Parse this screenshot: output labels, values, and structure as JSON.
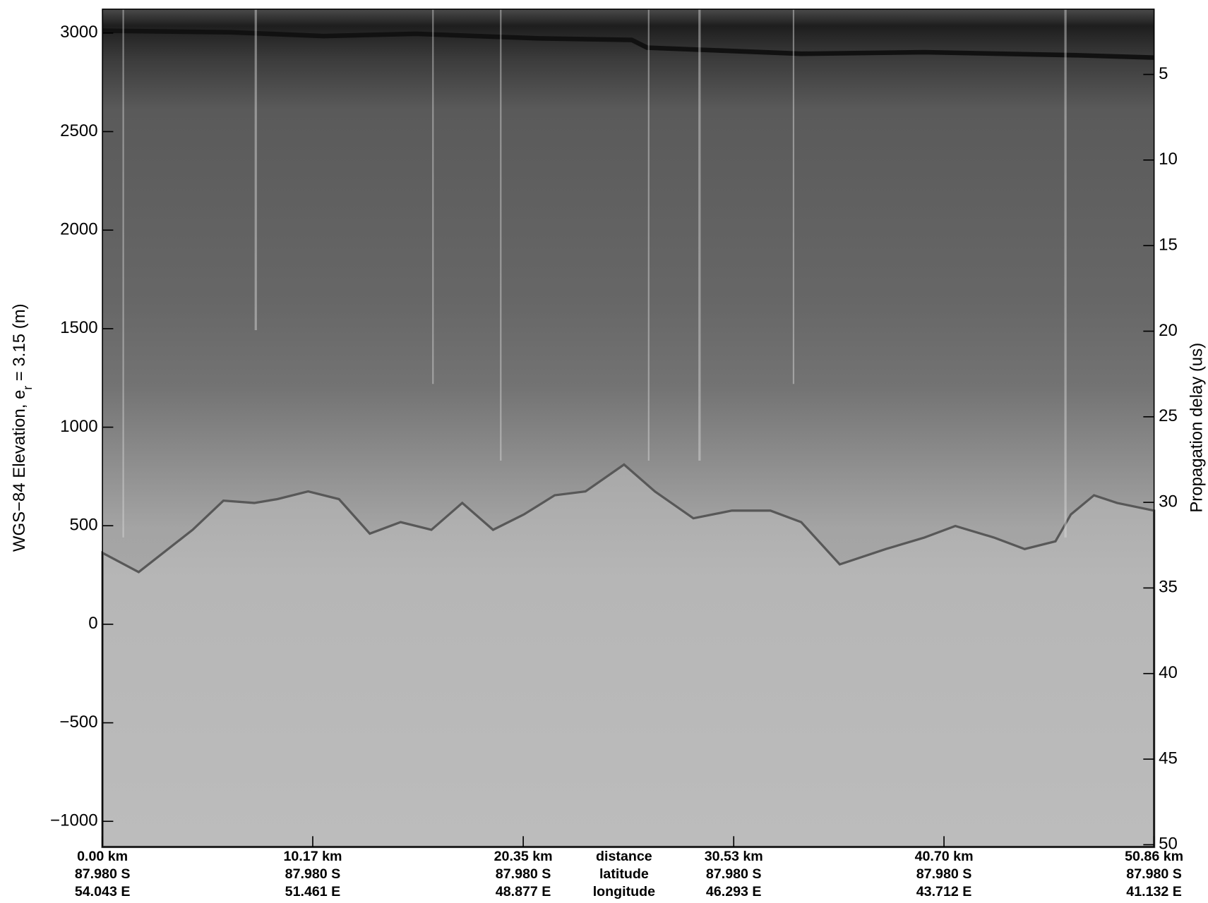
{
  "chart_data": {
    "type": "radargram",
    "ylabel": [
      "WGS−84 Elevation, e",
      "r",
      " = 3.15 (m)"
    ],
    "y2label": "Propagation delay (us)",
    "ylim": [
      -1130,
      3121
    ],
    "yticks": [
      {
        "value": -1000,
        "label": "−1000"
      },
      {
        "value": -500,
        "label": "−500"
      },
      0,
      500,
      1000,
      1500,
      2000,
      2500,
      3000
    ],
    "y2lim": [
      50.13,
      1.19
    ],
    "y2ticks": [
      5,
      10,
      15,
      20,
      25,
      30,
      35,
      40,
      45,
      50
    ],
    "xlim": [
      0,
      50.86
    ],
    "xticks": [
      {
        "value": 0,
        "label": "0.00 km"
      },
      {
        "value": 10.17,
        "label": "10.17 km"
      },
      {
        "value": 20.35,
        "label": "20.35 km"
      },
      {
        "value": 30.53,
        "label": "30.53 km"
      },
      {
        "value": 40.7,
        "label": "40.70 km"
      },
      {
        "value": 50.86,
        "label": "50.86 km"
      }
    ],
    "latitudes": [
      "87.980 S",
      "87.980 S",
      "87.980 S",
      "87.980 S",
      "87.980 S",
      "87.980 S"
    ],
    "longitudes": [
      "54.043 E",
      "51.461 E",
      "48.877 E",
      "46.293 E",
      "43.712 E",
      "41.132 E"
    ],
    "row_labels": [
      "distance",
      "latitude",
      "longitude"
    ]
  }
}
